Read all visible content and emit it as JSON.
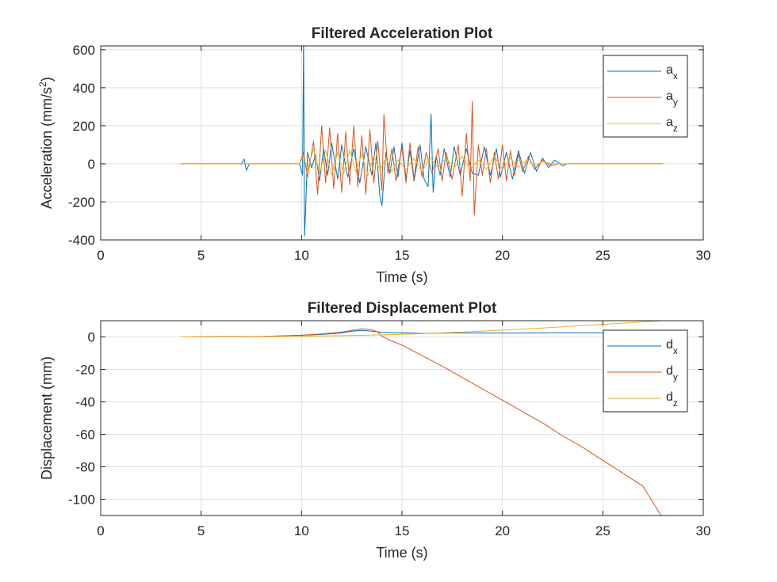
{
  "colors": {
    "ax": "#0072BD",
    "ay": "#D95319",
    "az": "#EDB120",
    "grid": "#dfdfdf",
    "axis": "#262626"
  },
  "chart_data": [
    {
      "type": "line",
      "title": "Filtered Acceleration Plot",
      "xlabel": "Time (s)",
      "ylabel": "Acceleration (mm/s",
      "ylabel_sup": "2",
      "ylabel_suffix": ")",
      "xlim": [
        0,
        30
      ],
      "ylim": [
        -400,
        620
      ],
      "xticks": [
        0,
        5,
        10,
        15,
        20,
        25,
        30
      ],
      "yticks": [
        -400,
        -200,
        0,
        200,
        400,
        600
      ],
      "grid": true,
      "legend_position": "top-right",
      "series": [
        {
          "name": "a",
          "name_sub": "x",
          "color": "#0072BD",
          "points": [
            [
              4.0,
              0
            ],
            [
              7.0,
              0
            ],
            [
              7.15,
              25
            ],
            [
              7.25,
              -35
            ],
            [
              7.4,
              0
            ],
            [
              9.9,
              0
            ],
            [
              10.05,
              -60
            ],
            [
              10.1,
              650
            ],
            [
              10.15,
              -380
            ],
            [
              10.2,
              -250
            ],
            [
              10.3,
              60
            ],
            [
              10.5,
              -20
            ],
            [
              10.7,
              50
            ],
            [
              10.9,
              -90
            ],
            [
              11.1,
              80
            ],
            [
              11.3,
              -60
            ],
            [
              11.5,
              110
            ],
            [
              11.8,
              -80
            ],
            [
              12.0,
              100
            ],
            [
              12.3,
              -70
            ],
            [
              12.6,
              80
            ],
            [
              12.9,
              -100
            ],
            [
              13.2,
              90
            ],
            [
              13.5,
              -60
            ],
            [
              13.7,
              110
            ],
            [
              13.9,
              -170
            ],
            [
              14.0,
              -220
            ],
            [
              14.2,
              60
            ],
            [
              14.4,
              -50
            ],
            [
              14.6,
              90
            ],
            [
              14.8,
              -70
            ],
            [
              15.0,
              110
            ],
            [
              15.2,
              -80
            ],
            [
              15.4,
              70
            ],
            [
              15.6,
              -90
            ],
            [
              15.9,
              100
            ],
            [
              16.1,
              -80
            ],
            [
              16.3,
              -120
            ],
            [
              16.45,
              260
            ],
            [
              16.55,
              -150
            ],
            [
              16.7,
              40
            ],
            [
              16.9,
              -60
            ],
            [
              17.1,
              80
            ],
            [
              17.4,
              -70
            ],
            [
              17.6,
              90
            ],
            [
              17.9,
              -60
            ],
            [
              18.2,
              80
            ],
            [
              18.5,
              -50
            ],
            [
              18.8,
              -60
            ],
            [
              19.1,
              90
            ],
            [
              19.4,
              -60
            ],
            [
              19.7,
              80
            ],
            [
              19.9,
              -70
            ],
            [
              20.2,
              60
            ],
            [
              20.5,
              -80
            ],
            [
              20.8,
              70
            ],
            [
              21.1,
              -50
            ],
            [
              21.4,
              60
            ],
            [
              21.7,
              -40
            ],
            [
              22.0,
              30
            ],
            [
              22.3,
              -20
            ],
            [
              22.6,
              20
            ],
            [
              23.0,
              -10
            ],
            [
              23.2,
              0
            ],
            [
              28.0,
              0
            ]
          ]
        },
        {
          "name": "a",
          "name_sub": "y",
          "color": "#D95319",
          "points": [
            [
              4.0,
              0
            ],
            [
              9.9,
              0
            ],
            [
              10.1,
              60
            ],
            [
              10.3,
              -70
            ],
            [
              10.6,
              120
            ],
            [
              10.8,
              -160
            ],
            [
              11.0,
              200
            ],
            [
              11.2,
              -100
            ],
            [
              11.4,
              190
            ],
            [
              11.6,
              -130
            ],
            [
              11.8,
              160
            ],
            [
              12.0,
              -150
            ],
            [
              12.2,
              170
            ],
            [
              12.4,
              -110
            ],
            [
              12.6,
              200
            ],
            [
              12.8,
              -120
            ],
            [
              13.0,
              150
            ],
            [
              13.2,
              -160
            ],
            [
              13.4,
              180
            ],
            [
              13.6,
              -100
            ],
            [
              13.8,
              120
            ],
            [
              14.0,
              -140
            ],
            [
              14.1,
              260
            ],
            [
              14.3,
              -50
            ],
            [
              14.5,
              80
            ],
            [
              14.7,
              -90
            ],
            [
              15.0,
              90
            ],
            [
              15.2,
              -100
            ],
            [
              15.4,
              110
            ],
            [
              15.6,
              -80
            ],
            [
              15.8,
              90
            ],
            [
              16.0,
              -70
            ],
            [
              16.2,
              60
            ],
            [
              16.5,
              -50
            ],
            [
              16.8,
              80
            ],
            [
              17.0,
              -90
            ],
            [
              17.2,
              60
            ],
            [
              17.5,
              -80
            ],
            [
              17.8,
              100
            ],
            [
              18.0,
              -170
            ],
            [
              18.2,
              160
            ],
            [
              18.4,
              -90
            ],
            [
              18.5,
              330
            ],
            [
              18.6,
              -270
            ],
            [
              18.8,
              100
            ],
            [
              19.0,
              -60
            ],
            [
              19.2,
              80
            ],
            [
              19.4,
              -100
            ],
            [
              19.6,
              60
            ],
            [
              19.8,
              -80
            ],
            [
              20.0,
              100
            ],
            [
              20.2,
              -90
            ],
            [
              20.4,
              70
            ],
            [
              20.6,
              -60
            ],
            [
              20.8,
              50
            ],
            [
              21.0,
              -40
            ],
            [
              21.3,
              40
            ],
            [
              21.6,
              -30
            ],
            [
              22.0,
              20
            ],
            [
              22.4,
              -10
            ],
            [
              22.8,
              0
            ],
            [
              28.0,
              0
            ]
          ]
        },
        {
          "name": "a",
          "name_sub": "z",
          "color": "#EDB120",
          "points": [
            [
              4.0,
              0
            ],
            [
              9.9,
              0
            ],
            [
              10.1,
              40
            ],
            [
              10.3,
              -30
            ],
            [
              10.6,
              80
            ],
            [
              10.9,
              -50
            ],
            [
              11.2,
              70
            ],
            [
              11.5,
              -60
            ],
            [
              11.8,
              60
            ],
            [
              12.1,
              -50
            ],
            [
              12.4,
              70
            ],
            [
              12.7,
              -40
            ],
            [
              13.0,
              50
            ],
            [
              13.3,
              -60
            ],
            [
              13.6,
              40
            ],
            [
              13.9,
              -30
            ],
            [
              14.2,
              30
            ],
            [
              14.5,
              -40
            ],
            [
              14.8,
              20
            ],
            [
              15.2,
              -30
            ],
            [
              15.6,
              30
            ],
            [
              16.0,
              -40
            ],
            [
              16.4,
              30
            ],
            [
              16.8,
              -20
            ],
            [
              17.2,
              30
            ],
            [
              17.6,
              -20
            ],
            [
              18.0,
              40
            ],
            [
              18.4,
              -30
            ],
            [
              18.8,
              20
            ],
            [
              19.2,
              -30
            ],
            [
              19.6,
              40
            ],
            [
              20.0,
              -30
            ],
            [
              20.4,
              30
            ],
            [
              20.8,
              -20
            ],
            [
              21.2,
              20
            ],
            [
              21.6,
              -10
            ],
            [
              22.0,
              10
            ],
            [
              22.5,
              0
            ],
            [
              28.0,
              0
            ]
          ]
        }
      ]
    },
    {
      "type": "line",
      "title": "Filtered Displacement Plot",
      "xlabel": "Time (s)",
      "ylabel": "Displacement (mm)",
      "xlim": [
        0,
        30
      ],
      "ylim": [
        -110,
        10
      ],
      "xticks": [
        0,
        5,
        10,
        15,
        20,
        25,
        30
      ],
      "yticks": [
        -100,
        -80,
        -60,
        -40,
        -20,
        0
      ],
      "grid": true,
      "legend_position": "top-right",
      "series": [
        {
          "name": "d",
          "name_sub": "x",
          "color": "#0072BD",
          "points": [
            [
              4.0,
              0
            ],
            [
              8.0,
              0.2
            ],
            [
              10.0,
              1
            ],
            [
              11.0,
              1.5
            ],
            [
              12.0,
              2.5
            ],
            [
              12.5,
              3.5
            ],
            [
              13.0,
              4
            ],
            [
              13.5,
              3.5
            ],
            [
              14.0,
              2.8
            ],
            [
              15.0,
              2.5
            ],
            [
              16.0,
              2.2
            ],
            [
              17.0,
              2.3
            ],
            [
              18.0,
              2.5
            ],
            [
              20.0,
              2.4
            ],
            [
              22.0,
              2.5
            ],
            [
              25.0,
              2.6
            ],
            [
              28.0,
              2.8
            ]
          ]
        },
        {
          "name": "d",
          "name_sub": "y",
          "color": "#D95319",
          "points": [
            [
              4.0,
              0
            ],
            [
              8.0,
              0.3
            ],
            [
              10.0,
              1
            ],
            [
              11.0,
              1.8
            ],
            [
              12.0,
              3
            ],
            [
              12.5,
              4
            ],
            [
              13.0,
              5
            ],
            [
              13.5,
              4.5
            ],
            [
              13.8,
              3
            ],
            [
              14.0,
              0.5
            ],
            [
              14.3,
              -1.5
            ],
            [
              15.0,
              -5
            ],
            [
              17.0,
              -18
            ],
            [
              19.0,
              -32
            ],
            [
              20.0,
              -39
            ],
            [
              21.0,
              -46
            ],
            [
              22.0,
              -53
            ],
            [
              23.0,
              -61
            ],
            [
              24.0,
              -68
            ],
            [
              25.0,
              -76
            ],
            [
              26.0,
              -84
            ],
            [
              27.0,
              -92
            ],
            [
              28.0,
              -112
            ]
          ]
        },
        {
          "name": "d",
          "name_sub": "z",
          "color": "#EDB120",
          "points": [
            [
              4.0,
              0
            ],
            [
              8.0,
              0.2
            ],
            [
              10.0,
              0.5
            ],
            [
              12.0,
              0.8
            ],
            [
              14.0,
              1.2
            ],
            [
              16.0,
              2
            ],
            [
              18.0,
              3
            ],
            [
              20.0,
              4.2
            ],
            [
              22.0,
              5.5
            ],
            [
              24.0,
              7
            ],
            [
              26.0,
              8.5
            ],
            [
              28.0,
              10
            ]
          ]
        }
      ]
    }
  ]
}
